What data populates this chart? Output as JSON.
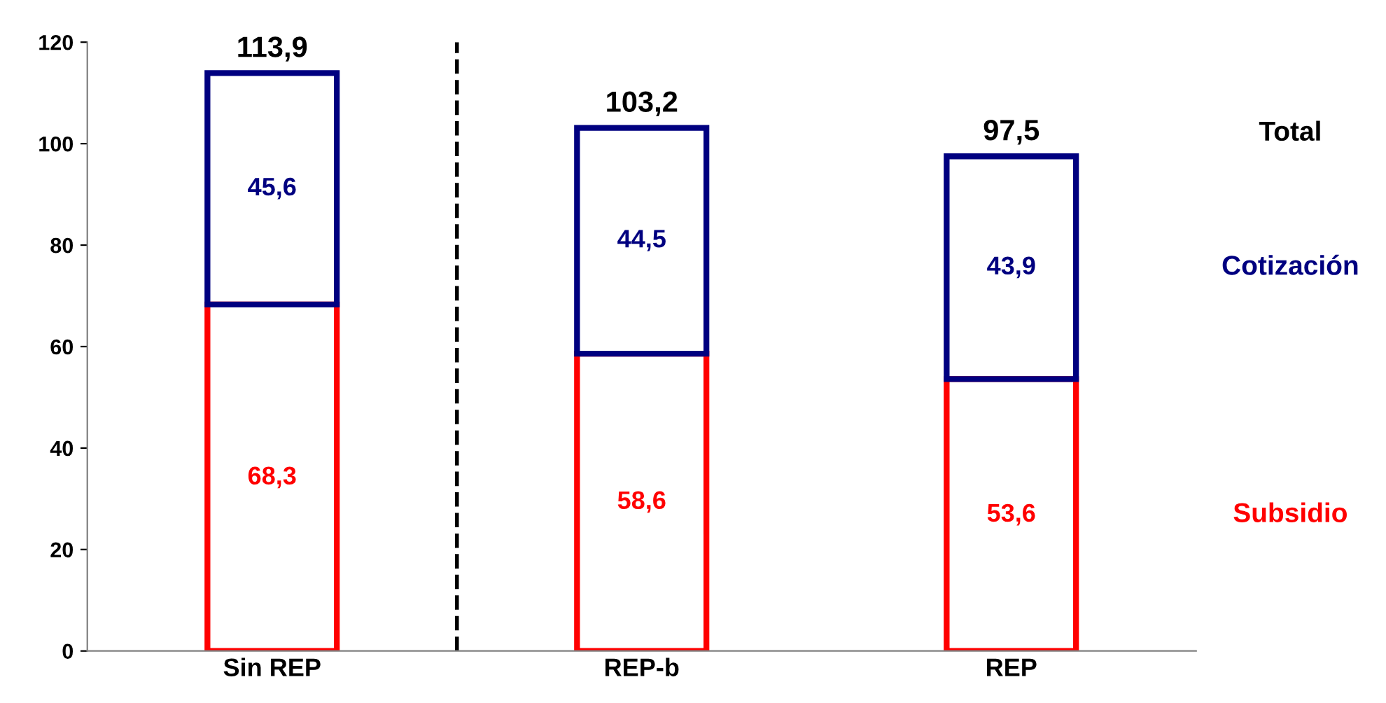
{
  "chart_data": {
    "type": "bar",
    "stacked": true,
    "categories": [
      "Sin REP",
      "REP-b",
      "REP"
    ],
    "series": [
      {
        "name": "Subsidio",
        "color": "#ff0000",
        "values": [
          68.3,
          58.6,
          53.6
        ],
        "value_labels": [
          "68,3",
          "58,6",
          "53,6"
        ]
      },
      {
        "name": "Cotización",
        "color": "#000080",
        "values": [
          45.6,
          44.5,
          43.9
        ],
        "value_labels": [
          "45,6",
          "44,5",
          "43,9"
        ]
      }
    ],
    "totals": [
      "113,9",
      "103,2",
      "97,5"
    ],
    "annotations": [
      "Total"
    ],
    "ylim": [
      0,
      120
    ],
    "yticks": [
      0,
      20,
      40,
      60,
      80,
      100,
      120
    ],
    "grid": false,
    "legend": "right"
  }
}
